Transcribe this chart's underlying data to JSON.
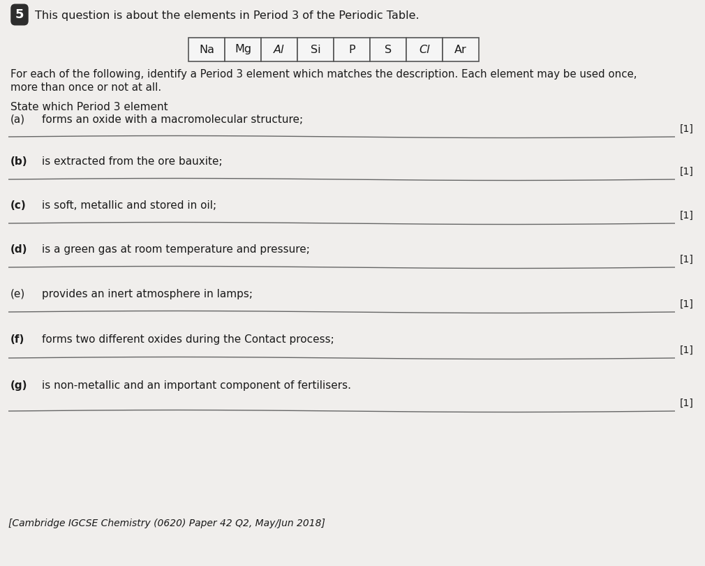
{
  "question_number": "5",
  "title": "This question is about the elements in Period 3 of the Periodic Table.",
  "elements": [
    "Na",
    "Mg",
    "Al",
    "Si",
    "P",
    "S",
    "Cl",
    "Ar"
  ],
  "intro_line1": "For each of the following, identify a Period 3 element which matches the description. Each element may be used once,",
  "intro_line2": "more than once or not at all.",
  "state_text": "State which Period 3 element",
  "parts": [
    {
      "label": "(a)",
      "bold": false,
      "text": "forms an oxide with a macromolecular structure;"
    },
    {
      "label": "(b)",
      "bold": true,
      "text": "is extracted from the ore bauxite;"
    },
    {
      "label": "(c)",
      "bold": true,
      "text": "is soft, metallic and stored in oil;"
    },
    {
      "label": "(d)",
      "bold": true,
      "text": "is a green gas at room temperature and pressure;"
    },
    {
      "label": "(e)",
      "bold": false,
      "text": "provides an inert atmosphere in lamps;"
    },
    {
      "label": "(f)",
      "bold": true,
      "text": "forms two different oxides during the Contact process;"
    },
    {
      "label": "(g)",
      "bold": true,
      "text": "is non-metallic and an important component of fertilisers."
    }
  ],
  "mark": "[1]",
  "citation": "[Cambridge IGCSE Chemistry (0620) Paper 42 Q2, May/Jun 2018]",
  "bg_color": "#f0eeec",
  "text_color": "#1a1a1a",
  "line_color": "#666666",
  "box_bg": "#f5f5f5",
  "box_edge": "#555555",
  "badge_bg": "#2d2d2d",
  "italic_elements": [
    "Al",
    "Cl"
  ]
}
